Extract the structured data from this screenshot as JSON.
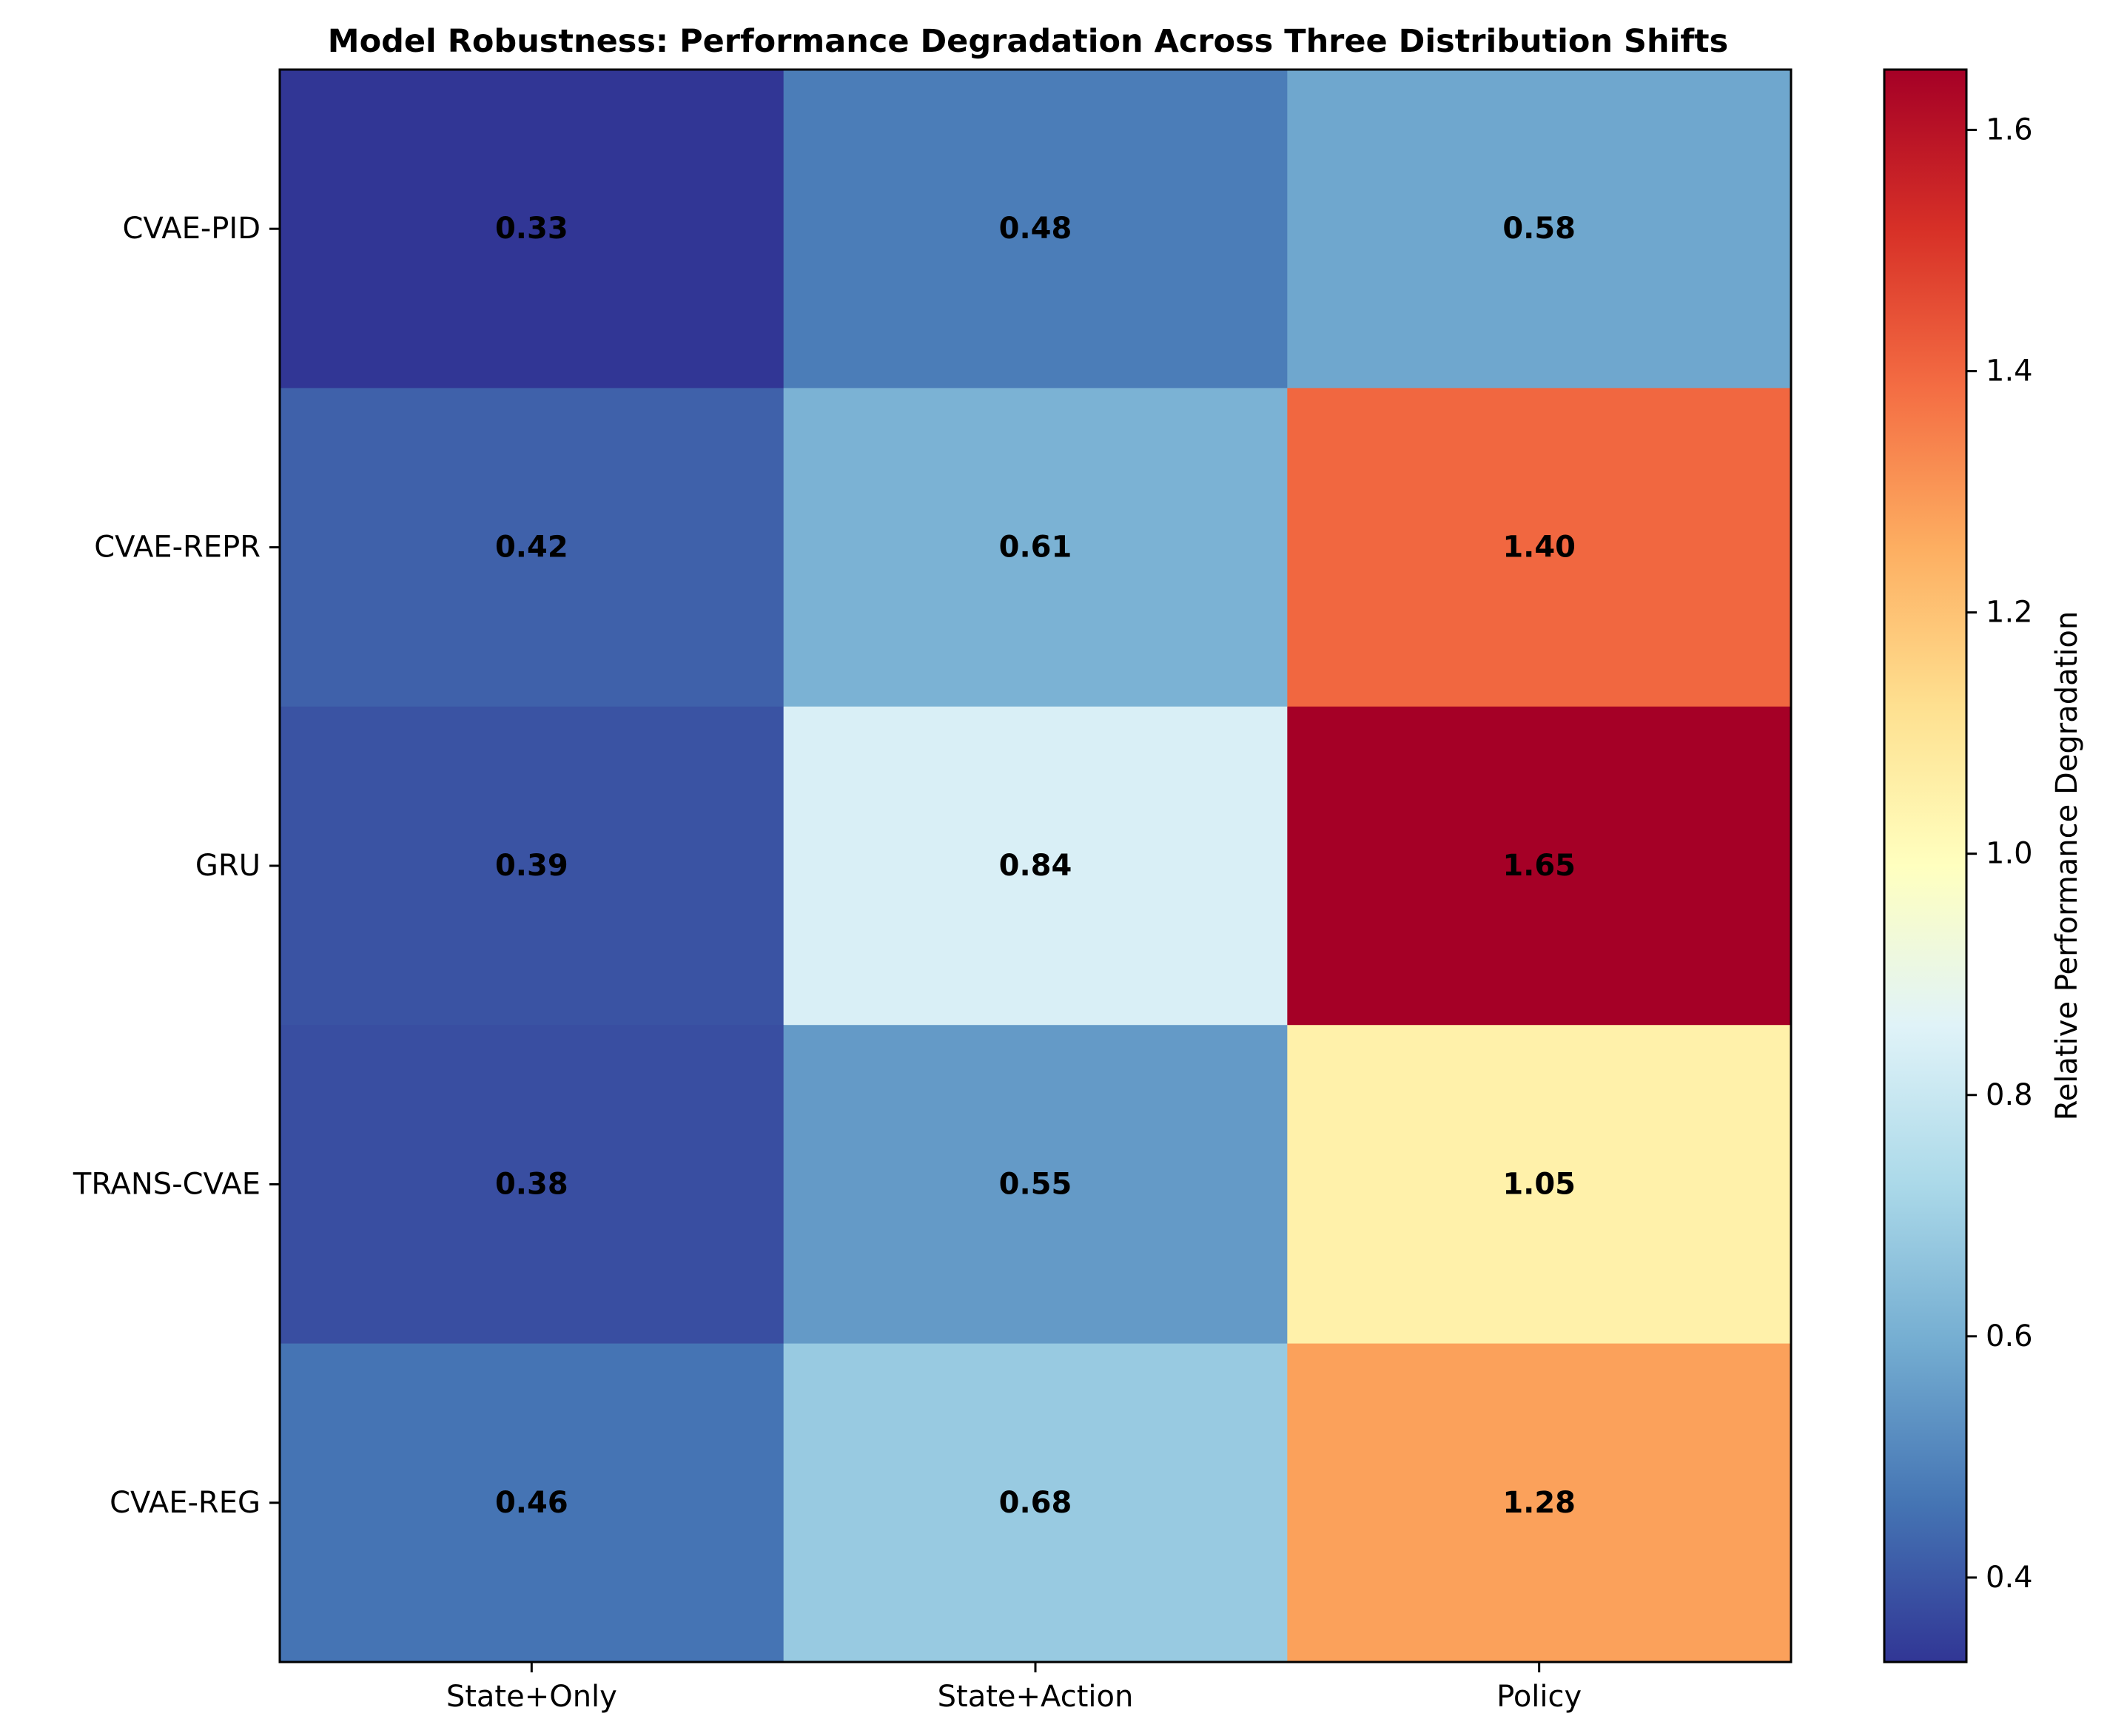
{
  "chart_data": {
    "type": "heatmap",
    "title": "Model Robustness: Performance Degradation Across Three Distribution Shifts",
    "xlabel": "",
    "ylabel": "",
    "columns": [
      "State+Only",
      "State+Action",
      "Policy"
    ],
    "rows": [
      "CVAE-PID",
      "CVAE-REPR",
      "GRU",
      "TRANS-CVAE",
      "CVAE-REG"
    ],
    "values": [
      [
        0.33,
        0.48,
        0.58
      ],
      [
        0.42,
        0.61,
        1.4
      ],
      [
        0.39,
        0.84,
        1.65
      ],
      [
        0.38,
        0.55,
        1.05
      ],
      [
        0.46,
        0.68,
        1.28
      ]
    ],
    "value_labels": [
      [
        "0.33",
        "0.48",
        "0.58"
      ],
      [
        "0.42",
        "0.61",
        "1.40"
      ],
      [
        "0.39",
        "0.84",
        "1.65"
      ],
      [
        "0.38",
        "0.55",
        "1.05"
      ],
      [
        "0.46",
        "0.68",
        "1.28"
      ]
    ],
    "colormap": "RdYlBu_r",
    "colormap_stops": [
      "#313695",
      "#4575b4",
      "#74add1",
      "#abd9e9",
      "#e0f3f8",
      "#ffffbf",
      "#fee090",
      "#fdae61",
      "#f46d43",
      "#d73027",
      "#a50026"
    ],
    "colorbar": {
      "label": "Relative Performance Degradation",
      "range": [
        0.33,
        1.65
      ],
      "ticks": [
        0.4,
        0.6,
        0.8,
        1.0,
        1.2,
        1.4,
        1.6
      ],
      "tick_labels": [
        "0.4",
        "0.6",
        "0.8",
        "1.0",
        "1.2",
        "1.4",
        "1.6"
      ]
    },
    "grid": false
  }
}
